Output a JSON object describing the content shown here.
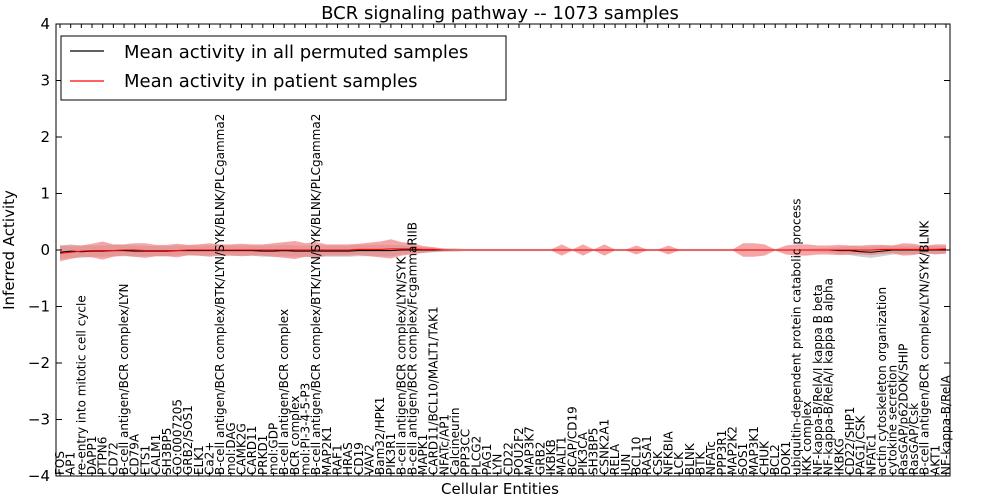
{
  "chart_data": {
    "type": "line",
    "title": "BCR signaling pathway -- 1073 samples",
    "xlabel": "Cellular Entities",
    "ylabel": "Inferred Activity",
    "ylim": [
      -4,
      4
    ],
    "yticks": [
      -4,
      -3,
      -2,
      -1,
      0,
      1,
      2,
      3,
      4
    ],
    "grid": false,
    "legend_position": "top-left",
    "colors": {
      "permuted_line": "#000000",
      "permuted_band": "#c8c8c8",
      "patient_line": "#ff0000",
      "patient_band": "#f08080"
    },
    "categories": [
      "FOS",
      "AP1",
      "re-entry into mitotic cell cycle",
      "DAPP1",
      "PTPN6",
      "CD72",
      "B-cell antigen/BCR complex/LYN",
      "CD79A",
      "ETS1",
      "CALM1",
      "SH3BP5",
      "GO:0007205",
      "GRB2/SOS1",
      "ELK1",
      "Ca2+",
      "B-cell antigen/BCR complex/BTK/LYN/SYK/BLNK/PLCgamma2",
      "mol:DAG",
      "CAMK2G",
      "CARD11",
      "PRKD1",
      "mol:GDP",
      "B-cell antigen/BCR complex",
      "BCR complex",
      "mol:PI-3-4-5-P3",
      "B-cell antigen/BCR complex/BTK/LYN/SYK/BLNK/PLCgamma2",
      "MAP2K1",
      "RAF1",
      "HRAS",
      "CD19",
      "VAV2",
      "Bam32/HPK1",
      "PIK3R1",
      "B-cell antigen/BCR complex/LYN/SYK",
      "B-cell antigen/BCR complex/FcgammaRIIB",
      "MAPK1",
      "CARD11/BCL10/MALT1/TAK1",
      "NFATc/AP1",
      "Calcineurin",
      "PPP3CC",
      "PLCG2",
      "PAG1",
      "LYN",
      "CD22",
      "POU2F2",
      "MAP3K7",
      "GRB2",
      "IKBKB",
      "MALT1",
      "BCAP/CD19",
      "PIK3CA",
      "SH3BP5",
      "CSNK2A1",
      "RELA",
      "JUN",
      "BCL10",
      "RASA1",
      "CSK",
      "NFKBIA",
      "LCK",
      "BLNK",
      "BTK",
      "NFATc",
      "PPP3R1",
      "MAP2K2",
      "SOS1",
      "MAP3K1",
      "CHUK",
      "BCL2",
      "DOK1",
      "ubiquitin-dependent protein catabolic process",
      "IKK complex",
      "NF-kappa-B/RelA/I kappa B beta",
      "NF-kappa-B/RelA/I kappa B alpha",
      "IKBKG",
      "CD22/SHP1",
      "PAG1/CSK",
      "NFATc1",
      "actin cytoskeleton organization",
      "cytokine secretion",
      "RasGAP/p62DOK/SHIP",
      "RasGAP/Csk",
      "B-cell antigen/BCR complex/LYN/SYK/BLNK",
      "AKT1",
      "NF-kappa-B/RelA"
    ],
    "series": [
      {
        "name": "Mean activity in all permuted samples",
        "values": [
          -0.04,
          -0.02,
          -0.03,
          -0.02,
          -0.02,
          -0.01,
          -0.01,
          -0.02,
          -0.02,
          -0.02,
          -0.02,
          -0.01,
          -0.01,
          -0.01,
          -0.01,
          -0.01,
          -0.01,
          -0.01,
          -0.01,
          -0.02,
          -0.02,
          -0.01,
          -0.02,
          -0.02,
          -0.02,
          -0.02,
          -0.02,
          -0.02,
          -0.01,
          -0.01,
          -0.01,
          -0.01,
          0.0,
          0.0,
          0.0,
          0.0,
          0.0,
          0.0,
          0.0,
          0.0,
          0.0,
          0.0,
          0.0,
          0.0,
          0.0,
          0.0,
          0.0,
          0.0,
          0.0,
          0.0,
          0.0,
          0.0,
          0.0,
          0.0,
          0.0,
          0.0,
          0.0,
          0.0,
          0.0,
          0.0,
          0.0,
          0.0,
          0.0,
          0.0,
          0.0,
          0.0,
          0.0,
          0.0,
          0.0,
          0.0,
          0.0,
          0.0,
          0.0,
          -0.01,
          -0.01,
          -0.03,
          -0.04,
          -0.02,
          0.0,
          0.0,
          0.0,
          0.0,
          0.0,
          0.0
        ],
        "band": [
          0.12,
          0.12,
          0.11,
          0.1,
          0.1,
          0.1,
          0.1,
          0.1,
          0.09,
          0.09,
          0.09,
          0.09,
          0.09,
          0.09,
          0.09,
          0.09,
          0.09,
          0.09,
          0.09,
          0.1,
          0.1,
          0.1,
          0.1,
          0.1,
          0.1,
          0.1,
          0.1,
          0.1,
          0.1,
          0.1,
          0.1,
          0.1,
          0.08,
          0.06,
          0.05,
          0.04,
          0.03,
          0.03,
          0.02,
          0.02,
          0.02,
          0.02,
          0.02,
          0.02,
          0.02,
          0.02,
          0.02,
          0.02,
          0.02,
          0.02,
          0.02,
          0.02,
          0.02,
          0.02,
          0.02,
          0.02,
          0.02,
          0.02,
          0.02,
          0.02,
          0.02,
          0.02,
          0.02,
          0.02,
          0.02,
          0.02,
          0.02,
          0.02,
          0.02,
          0.02,
          0.02,
          0.03,
          0.04,
          0.06,
          0.08,
          0.09,
          0.1,
          0.09,
          0.08,
          0.07,
          0.07,
          0.07,
          0.07,
          0.07
        ]
      },
      {
        "name": "Mean activity in patient samples",
        "values": [
          -0.06,
          -0.04,
          -0.02,
          -0.01,
          -0.01,
          -0.01,
          0.0,
          0.0,
          -0.01,
          -0.01,
          -0.01,
          -0.01,
          0.0,
          0.0,
          0.0,
          0.0,
          0.0,
          0.0,
          0.0,
          0.0,
          0.0,
          0.0,
          0.0,
          0.0,
          0.0,
          0.0,
          0.0,
          0.0,
          0.01,
          0.01,
          0.01,
          0.02,
          0.02,
          0.02,
          0.01,
          0.01,
          0.0,
          0.0,
          0.0,
          0.0,
          0.0,
          0.0,
          0.0,
          0.0,
          0.0,
          0.0,
          0.0,
          0.0,
          0.0,
          0.0,
          0.0,
          0.0,
          0.0,
          0.0,
          0.0,
          0.0,
          0.0,
          0.0,
          0.0,
          0.0,
          0.0,
          0.0,
          0.0,
          0.0,
          0.0,
          0.0,
          0.0,
          0.0,
          0.0,
          0.0,
          0.0,
          0.0,
          0.0,
          0.0,
          0.0,
          0.0,
          0.0,
          0.01,
          0.01,
          0.01,
          0.01,
          0.01,
          0.01,
          0.02
        ],
        "band": [
          0.14,
          0.12,
          0.1,
          0.12,
          0.16,
          0.11,
          0.1,
          0.12,
          0.13,
          0.1,
          0.1,
          0.12,
          0.09,
          0.1,
          0.12,
          0.1,
          0.1,
          0.11,
          0.1,
          0.1,
          0.12,
          0.14,
          0.16,
          0.12,
          0.14,
          0.1,
          0.1,
          0.1,
          0.1,
          0.12,
          0.14,
          0.17,
          0.12,
          0.1,
          0.06,
          0.04,
          0.02,
          0.01,
          0.01,
          0.01,
          0.01,
          0.01,
          0.01,
          0.01,
          0.01,
          0.01,
          0.01,
          0.1,
          0.01,
          0.1,
          0.01,
          0.1,
          0.01,
          0.01,
          0.08,
          0.01,
          0.01,
          0.08,
          0.01,
          0.01,
          0.01,
          0.01,
          0.01,
          0.01,
          0.12,
          0.12,
          0.1,
          0.01,
          0.08,
          0.1,
          0.1,
          0.08,
          0.08,
          0.09,
          0.08,
          0.08,
          0.09,
          0.08,
          0.07,
          0.11,
          0.1,
          0.06,
          0.09,
          0.08
        ]
      }
    ]
  }
}
